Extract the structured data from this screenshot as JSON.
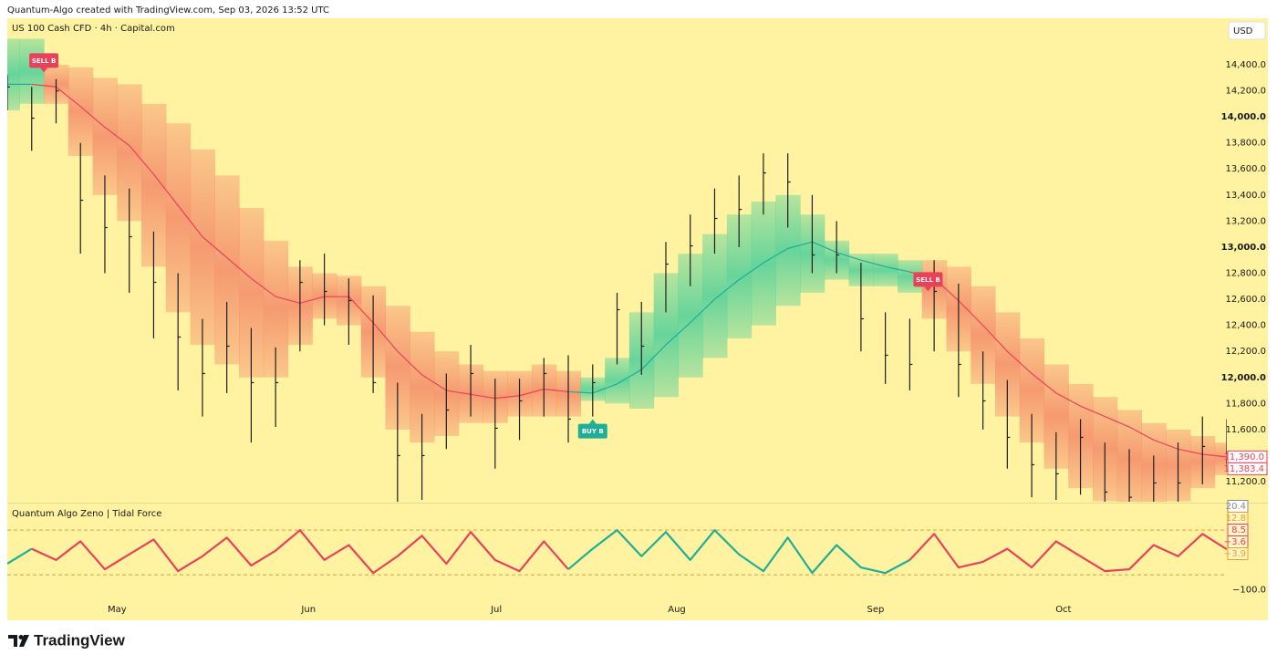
{
  "header": "Quantum-Algo created with TradingView.com, Sep 03, 2026 13:52 UTC",
  "footer": "TradingView",
  "chart_data": [
    {
      "type": "candlestick",
      "title": "US 100 Cash CFD · 4h · Capital.com",
      "currency": "USD",
      "x": [
        0,
        4,
        8,
        12,
        16,
        20,
        24,
        28,
        32,
        36,
        40,
        44,
        48,
        52,
        56,
        60,
        64,
        68,
        72,
        76,
        80,
        84,
        88,
        92,
        96,
        100,
        104,
        108,
        112,
        116,
        120,
        124,
        128,
        132,
        136,
        140,
        144,
        148,
        152,
        156,
        160,
        164,
        168,
        172,
        176,
        180,
        184,
        188,
        192,
        196,
        200
      ],
      "high": [
        14320,
        14230,
        14290,
        13800,
        13550,
        13450,
        13120,
        12800,
        12450,
        12580,
        12380,
        12230,
        12900,
        12950,
        12760,
        12630,
        11960,
        11720,
        12030,
        12250,
        11990,
        11990,
        12150,
        12170,
        12100,
        12650,
        12580,
        13040,
        13250,
        13450,
        13550,
        13720,
        13720,
        13400,
        13200,
        12880,
        12500,
        12450,
        12900,
        12720,
        12200,
        11980,
        11720,
        11580,
        11680,
        11500,
        11450,
        11400,
        11500,
        11700,
        11680
      ],
      "low": [
        14050,
        13740,
        13950,
        12950,
        12800,
        12650,
        12300,
        11900,
        11700,
        11880,
        11500,
        11620,
        12200,
        12400,
        12250,
        11880,
        11020,
        11060,
        11450,
        11700,
        11300,
        11520,
        11700,
        11500,
        11700,
        12100,
        12020,
        12500,
        12700,
        12950,
        13000,
        13250,
        13150,
        12800,
        12800,
        12200,
        11950,
        11900,
        12200,
        11850,
        11600,
        11300,
        11080,
        11060,
        11100,
        10980,
        10950,
        10990,
        11000,
        11180,
        11330
      ],
      "close": [
        14230,
        13990,
        14200,
        13360,
        13150,
        13080,
        12730,
        12310,
        12030,
        12240,
        11960,
        11960,
        12730,
        12660,
        12590,
        11960,
        11400,
        11400,
        11750,
        12030,
        11610,
        11820,
        12030,
        11680,
        11960,
        12520,
        12240,
        12870,
        13010,
        13220,
        13290,
        13570,
        13500,
        12940,
        12940,
        12450,
        12170,
        12100,
        12660,
        12100,
        11820,
        11540,
        11330,
        11260,
        11540,
        11120,
        11080,
        11190,
        11190,
        11470,
        11390
      ],
      "band": {
        "mid": [
          14250,
          14250,
          14230,
          14080,
          13920,
          13780,
          13560,
          13320,
          13080,
          12920,
          12760,
          12620,
          12570,
          12620,
          12620,
          12420,
          12200,
          12020,
          11900,
          11870,
          11840,
          11860,
          11910,
          11890,
          11880,
          11950,
          12060,
          12250,
          12420,
          12600,
          12750,
          12880,
          12990,
          13040,
          12960,
          12900,
          12850,
          12810,
          12760,
          12590,
          12400,
          12200,
          12030,
          11880,
          11780,
          11700,
          11620,
          11520,
          11450,
          11410,
          11390
        ],
        "upper": [
          14600,
          14600,
          14400,
          14380,
          14300,
          14250,
          14100,
          13950,
          13750,
          13550,
          13300,
          13050,
          12850,
          12800,
          12780,
          12700,
          12550,
          12350,
          12200,
          12100,
          12050,
          12050,
          12100,
          12050,
          12000,
          12150,
          12500,
          12800,
          12950,
          13100,
          13250,
          13350,
          13400,
          13250,
          13050,
          12950,
          12950,
          12900,
          12900,
          12850,
          12700,
          12500,
          12300,
          12100,
          11950,
          11850,
          11750,
          11650,
          11600,
          11550,
          11500
        ],
        "lower": [
          14050,
          14100,
          14100,
          13700,
          13400,
          13200,
          12850,
          12500,
          12250,
          12100,
          12000,
          12000,
          12250,
          12450,
          12400,
          12000,
          11600,
          11500,
          11550,
          11650,
          11650,
          11700,
          11700,
          11700,
          11820,
          11800,
          11760,
          11850,
          12000,
          12150,
          12300,
          12400,
          12550,
          12650,
          12750,
          12700,
          12700,
          12650,
          12450,
          12200,
          11950,
          11700,
          11500,
          11300,
          11150,
          11050,
          11000,
          11000,
          11050,
          11150,
          11250
        ]
      },
      "colors": {
        "candle": "#1f1f1f",
        "sell": {
          "line": "#e8425a",
          "band": "#f5956f"
        },
        "buy": {
          "line": "#1fae96",
          "band": "#5fd39a"
        }
      },
      "signals": [
        {
          "text": "SELL B",
          "side": "sell",
          "x": 6,
          "y": 14320
        },
        {
          "text": "BUY B",
          "side": "buy",
          "x": 96,
          "y": 11700
        },
        {
          "text": "SELL B",
          "side": "sell",
          "x": 151,
          "y": 12640
        }
      ],
      "last_values": [
        {
          "value": 11390,
          "label": "11,390.0",
          "color": "#e8425a"
        },
        {
          "value": 11383.4,
          "label": "11,383.4",
          "color": "#e8425a"
        }
      ],
      "xlim": [
        0,
        200
      ],
      "xticks": [
        {
          "value": 18,
          "label": "May"
        },
        {
          "value": 49.4,
          "label": "Jun"
        },
        {
          "value": 80.2,
          "label": "Jul"
        },
        {
          "value": 109.8,
          "label": "Aug"
        },
        {
          "value": 142.4,
          "label": "Sep"
        },
        {
          "value": 173.2,
          "label": "Oct"
        }
      ],
      "ylim": [
        11046,
        14757
      ],
      "yticks": [
        {
          "value": 11200,
          "label": "11,200.0"
        },
        {
          "value": 11400,
          "label": "11,400.0"
        },
        {
          "value": 11600,
          "label": "11,600.0"
        },
        {
          "value": 11800,
          "label": "11,800.0"
        },
        {
          "value": 12000,
          "label": "12,000.0"
        },
        {
          "value": 12200,
          "label": "12,200.0"
        },
        {
          "value": 12400,
          "label": "12,400.0"
        },
        {
          "value": 12600,
          "label": "12,600.0"
        },
        {
          "value": 12800,
          "label": "12,800.0"
        },
        {
          "value": 13000,
          "label": "13,000.0"
        },
        {
          "value": 13200,
          "label": "13,200.0"
        },
        {
          "value": 13400,
          "label": "13,400.0"
        },
        {
          "value": 13600,
          "label": "13,600.0"
        },
        {
          "value": 13800,
          "label": "13,800.0"
        },
        {
          "value": 14000,
          "label": "14,000.0"
        },
        {
          "value": 14200,
          "label": "14,200.0"
        },
        {
          "value": 14400,
          "label": "14,400.0"
        }
      ],
      "grid": false
    },
    {
      "type": "line",
      "title": "Quantum Algo Zeno | Tidal Force",
      "x": [
        0,
        4,
        8,
        12,
        16,
        20,
        24,
        28,
        32,
        36,
        40,
        44,
        48,
        52,
        56,
        60,
        64,
        68,
        72,
        76,
        80,
        84,
        88,
        92,
        96,
        100,
        104,
        108,
        112,
        116,
        120,
        124,
        128,
        132,
        136,
        140,
        144,
        148,
        152,
        156,
        160,
        164,
        168,
        172,
        176,
        180,
        184,
        188,
        192,
        196,
        200
      ],
      "values": [
        -30,
        10,
        -20,
        30,
        -45,
        -5,
        35,
        -50,
        -10,
        40,
        -35,
        5,
        60,
        -20,
        20,
        -55,
        -10,
        45,
        -30,
        55,
        -20,
        -50,
        30,
        -45,
        10,
        60,
        -10,
        55,
        -20,
        60,
        -5,
        -50,
        40,
        -55,
        20,
        -40,
        -55,
        -20,
        50,
        -40,
        -25,
        10,
        -40,
        30,
        -10,
        -50,
        -45,
        20,
        -10,
        50,
        8.5
      ],
      "levels": [
        60,
        -60
      ],
      "level_color": "#e0a040",
      "ylim": [
        -182,
        129
      ],
      "yticks": [
        {
          "value": -100,
          "label": "−100.0"
        }
      ],
      "last_values": [
        {
          "value": 20.4,
          "label": "20.4",
          "color": "#8a8a8a"
        },
        {
          "value": 12.8,
          "label": "12.8",
          "color": "#f0a020"
        },
        {
          "value": 8.5,
          "label": "8.5",
          "color": "#e8425a"
        },
        {
          "value": -3.6,
          "label": "−3.6",
          "color": "#e8425a"
        },
        {
          "value": -3.9,
          "label": "−3.9",
          "color": "#f0a020"
        }
      ]
    }
  ]
}
